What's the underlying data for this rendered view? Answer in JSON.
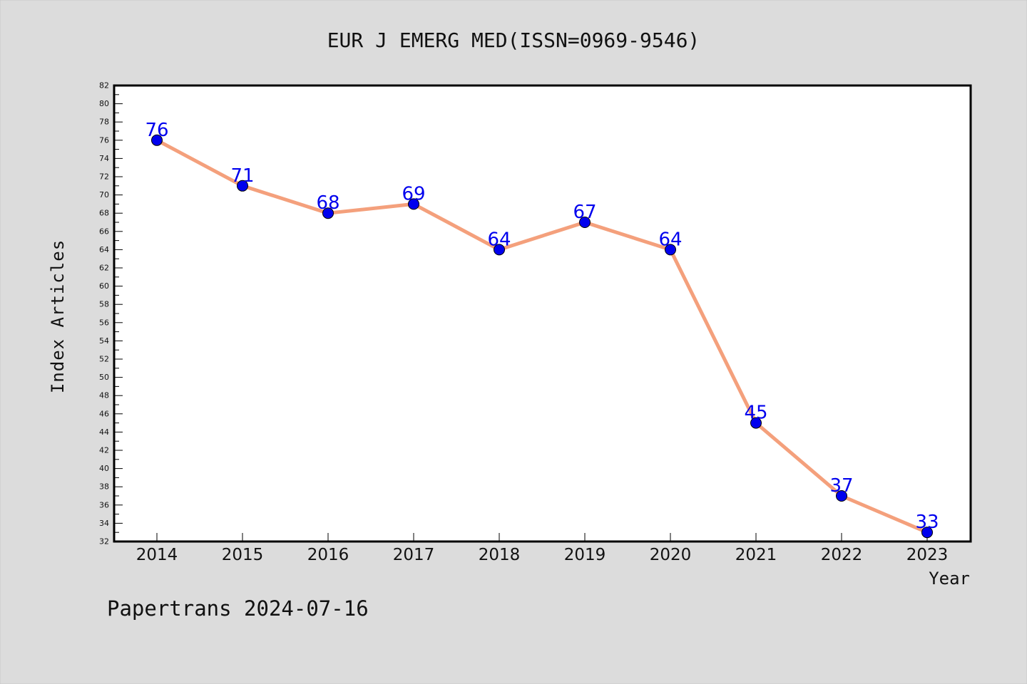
{
  "chart_data": {
    "type": "line",
    "title": "EUR J EMERG MED(ISSN=0969-9546)",
    "xlabel": "Year",
    "ylabel": "Index Articles",
    "footer": "Papertrans 2024-07-16",
    "categories": [
      "2014",
      "2015",
      "2016",
      "2017",
      "2018",
      "2019",
      "2020",
      "2021",
      "2022",
      "2023"
    ],
    "values": [
      76,
      71,
      68,
      69,
      64,
      67,
      64,
      45,
      37,
      33
    ],
    "ylim": [
      32,
      82
    ],
    "ytick_step": 2,
    "grid": false,
    "legend": "none",
    "colors": {
      "background": "#dcdcdc",
      "plot_area": "#ffffff",
      "line": "#f4a07c",
      "marker": "#0000ee",
      "data_label": "#0000ee",
      "text": "#111111"
    }
  }
}
